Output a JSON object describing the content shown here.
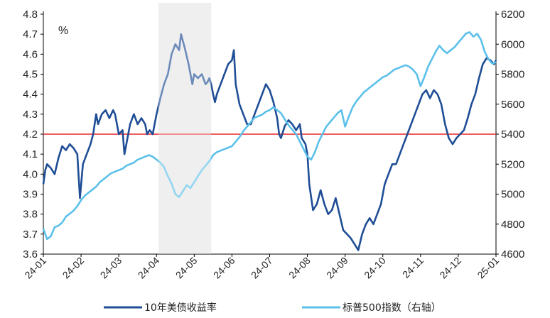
{
  "chart_data": {
    "type": "line",
    "left_unit": "%",
    "x_ticks": [
      "24-01",
      "24-02",
      "24-03",
      "24-04",
      "24-05",
      "24-06",
      "24-07",
      "24-08",
      "24-09",
      "24-10",
      "24-11",
      "24-12",
      "25-01"
    ],
    "y_left": {
      "min": 3.6,
      "max": 4.8,
      "ticks": [
        "3.6",
        "3.7",
        "3.8",
        "3.9",
        "4.0",
        "4.1",
        "4.2",
        "4.3",
        "4.4",
        "4.5",
        "4.6",
        "4.7",
        "4.8"
      ]
    },
    "y_right": {
      "min": 4600,
      "max": 6200,
      "ticks": [
        "4600",
        "4800",
        "5000",
        "5200",
        "5400",
        "5600",
        "5800",
        "6000",
        "6200"
      ]
    },
    "reference_line": {
      "axis": "left",
      "value": 4.2,
      "color": "#e8262a"
    },
    "shaded_region": {
      "x_start": 3.05,
      "x_end": 4.45,
      "color": "#e6e6e6"
    },
    "series": [
      {
        "name": "10年美债收益率",
        "axis": "left",
        "color": "#1f4e96",
        "points": [
          [
            0.0,
            3.95
          ],
          [
            0.05,
            4.02
          ],
          [
            0.1,
            4.05
          ],
          [
            0.2,
            4.03
          ],
          [
            0.3,
            4.0
          ],
          [
            0.4,
            4.08
          ],
          [
            0.5,
            4.14
          ],
          [
            0.6,
            4.12
          ],
          [
            0.7,
            4.15
          ],
          [
            0.8,
            4.13
          ],
          [
            0.9,
            4.1
          ],
          [
            0.97,
            3.88
          ],
          [
            1.05,
            4.05
          ],
          [
            1.15,
            4.1
          ],
          [
            1.25,
            4.15
          ],
          [
            1.32,
            4.2
          ],
          [
            1.4,
            4.3
          ],
          [
            1.45,
            4.25
          ],
          [
            1.55,
            4.3
          ],
          [
            1.65,
            4.32
          ],
          [
            1.75,
            4.28
          ],
          [
            1.85,
            4.32
          ],
          [
            1.9,
            4.3
          ],
          [
            2.0,
            4.2
          ],
          [
            2.1,
            4.22
          ],
          [
            2.15,
            4.1
          ],
          [
            2.2,
            4.15
          ],
          [
            2.3,
            4.25
          ],
          [
            2.4,
            4.3
          ],
          [
            2.5,
            4.25
          ],
          [
            2.6,
            4.28
          ],
          [
            2.7,
            4.25
          ],
          [
            2.75,
            4.2
          ],
          [
            2.82,
            4.22
          ],
          [
            2.9,
            4.2
          ],
          [
            2.95,
            4.25
          ],
          [
            3.0,
            4.3
          ],
          [
            3.1,
            4.38
          ],
          [
            3.2,
            4.45
          ],
          [
            3.3,
            4.5
          ],
          [
            3.4,
            4.6
          ],
          [
            3.5,
            4.65
          ],
          [
            3.6,
            4.62
          ],
          [
            3.65,
            4.7
          ],
          [
            3.75,
            4.63
          ],
          [
            3.85,
            4.55
          ],
          [
            3.95,
            4.45
          ],
          [
            4.0,
            4.5
          ],
          [
            4.1,
            4.48
          ],
          [
            4.2,
            4.5
          ],
          [
            4.3,
            4.45
          ],
          [
            4.35,
            4.46
          ],
          [
            4.4,
            4.48
          ],
          [
            4.45,
            4.45
          ],
          [
            4.5,
            4.4
          ],
          [
            4.55,
            4.36
          ],
          [
            4.6,
            4.4
          ],
          [
            4.7,
            4.45
          ],
          [
            4.8,
            4.5
          ],
          [
            4.9,
            4.55
          ],
          [
            5.0,
            4.57
          ],
          [
            5.05,
            4.62
          ],
          [
            5.1,
            4.45
          ],
          [
            5.2,
            4.35
          ],
          [
            5.3,
            4.3
          ],
          [
            5.4,
            4.25
          ],
          [
            5.5,
            4.25
          ],
          [
            5.6,
            4.3
          ],
          [
            5.7,
            4.35
          ],
          [
            5.8,
            4.4
          ],
          [
            5.9,
            4.45
          ],
          [
            6.0,
            4.42
          ],
          [
            6.1,
            4.36
          ],
          [
            6.2,
            4.28
          ],
          [
            6.25,
            4.2
          ],
          [
            6.3,
            4.18
          ],
          [
            6.4,
            4.24
          ],
          [
            6.5,
            4.27
          ],
          [
            6.6,
            4.25
          ],
          [
            6.7,
            4.22
          ],
          [
            6.8,
            4.25
          ],
          [
            6.85,
            4.18
          ],
          [
            6.95,
            4.15
          ],
          [
            7.0,
            4.1
          ],
          [
            7.05,
            3.95
          ],
          [
            7.15,
            3.82
          ],
          [
            7.25,
            3.85
          ],
          [
            7.35,
            3.92
          ],
          [
            7.45,
            3.85
          ],
          [
            7.55,
            3.8
          ],
          [
            7.65,
            3.82
          ],
          [
            7.75,
            3.88
          ],
          [
            7.85,
            3.8
          ],
          [
            7.95,
            3.72
          ],
          [
            8.05,
            3.7
          ],
          [
            8.15,
            3.68
          ],
          [
            8.25,
            3.65
          ],
          [
            8.35,
            3.62
          ],
          [
            8.45,
            3.7
          ],
          [
            8.55,
            3.75
          ],
          [
            8.65,
            3.78
          ],
          [
            8.75,
            3.75
          ],
          [
            8.85,
            3.8
          ],
          [
            8.95,
            3.85
          ],
          [
            9.05,
            3.95
          ],
          [
            9.15,
            4.0
          ],
          [
            9.25,
            4.05
          ],
          [
            9.35,
            4.05
          ],
          [
            9.45,
            4.1
          ],
          [
            9.55,
            4.15
          ],
          [
            9.65,
            4.2
          ],
          [
            9.75,
            4.25
          ],
          [
            9.85,
            4.3
          ],
          [
            9.95,
            4.35
          ],
          [
            10.05,
            4.4
          ],
          [
            10.15,
            4.42
          ],
          [
            10.25,
            4.38
          ],
          [
            10.35,
            4.42
          ],
          [
            10.45,
            4.4
          ],
          [
            10.55,
            4.35
          ],
          [
            10.65,
            4.25
          ],
          [
            10.75,
            4.18
          ],
          [
            10.85,
            4.15
          ],
          [
            10.95,
            4.18
          ],
          [
            11.05,
            4.2
          ],
          [
            11.15,
            4.22
          ],
          [
            11.25,
            4.28
          ],
          [
            11.35,
            4.35
          ],
          [
            11.45,
            4.4
          ],
          [
            11.55,
            4.48
          ],
          [
            11.65,
            4.55
          ],
          [
            11.75,
            4.58
          ],
          [
            11.85,
            4.57
          ],
          [
            11.95,
            4.55
          ],
          [
            12.0,
            4.57
          ]
        ]
      },
      {
        "name": "标普500指数（右轴）",
        "axis": "right",
        "color": "#5bc0ea",
        "points": [
          [
            0.0,
            4770
          ],
          [
            0.1,
            4700
          ],
          [
            0.2,
            4720
          ],
          [
            0.3,
            4780
          ],
          [
            0.4,
            4790
          ],
          [
            0.5,
            4810
          ],
          [
            0.6,
            4850
          ],
          [
            0.7,
            4870
          ],
          [
            0.8,
            4890
          ],
          [
            0.9,
            4920
          ],
          [
            1.0,
            4960
          ],
          [
            1.1,
            4990
          ],
          [
            1.2,
            5010
          ],
          [
            1.3,
            5030
          ],
          [
            1.4,
            5050
          ],
          [
            1.5,
            5080
          ],
          [
            1.6,
            5100
          ],
          [
            1.7,
            5120
          ],
          [
            1.8,
            5140
          ],
          [
            1.9,
            5150
          ],
          [
            2.0,
            5160
          ],
          [
            2.1,
            5170
          ],
          [
            2.2,
            5190
          ],
          [
            2.3,
            5200
          ],
          [
            2.4,
            5210
          ],
          [
            2.5,
            5230
          ],
          [
            2.6,
            5240
          ],
          [
            2.7,
            5250
          ],
          [
            2.8,
            5260
          ],
          [
            2.9,
            5250
          ],
          [
            3.0,
            5230
          ],
          [
            3.1,
            5210
          ],
          [
            3.2,
            5180
          ],
          [
            3.3,
            5120
          ],
          [
            3.4,
            5070
          ],
          [
            3.5,
            5000
          ],
          [
            3.6,
            4980
          ],
          [
            3.7,
            5020
          ],
          [
            3.8,
            5060
          ],
          [
            3.9,
            5040
          ],
          [
            4.0,
            5080
          ],
          [
            4.1,
            5120
          ],
          [
            4.2,
            5160
          ],
          [
            4.3,
            5190
          ],
          [
            4.4,
            5220
          ],
          [
            4.5,
            5260
          ],
          [
            4.6,
            5280
          ],
          [
            4.7,
            5290
          ],
          [
            4.8,
            5300
          ],
          [
            4.9,
            5310
          ],
          [
            5.0,
            5320
          ],
          [
            5.1,
            5350
          ],
          [
            5.2,
            5380
          ],
          [
            5.3,
            5420
          ],
          [
            5.4,
            5450
          ],
          [
            5.5,
            5480
          ],
          [
            5.6,
            5510
          ],
          [
            5.7,
            5520
          ],
          [
            5.8,
            5530
          ],
          [
            5.9,
            5550
          ],
          [
            6.0,
            5560
          ],
          [
            6.1,
            5580
          ],
          [
            6.2,
            5560
          ],
          [
            6.3,
            5540
          ],
          [
            6.4,
            5500
          ],
          [
            6.5,
            5460
          ],
          [
            6.6,
            5430
          ],
          [
            6.7,
            5400
          ],
          [
            6.8,
            5350
          ],
          [
            6.9,
            5300
          ],
          [
            7.0,
            5250
          ],
          [
            7.1,
            5230
          ],
          [
            7.2,
            5280
          ],
          [
            7.3,
            5350
          ],
          [
            7.4,
            5400
          ],
          [
            7.5,
            5450
          ],
          [
            7.6,
            5480
          ],
          [
            7.7,
            5510
          ],
          [
            7.8,
            5540
          ],
          [
            7.9,
            5560
          ],
          [
            8.0,
            5450
          ],
          [
            8.1,
            5520
          ],
          [
            8.2,
            5580
          ],
          [
            8.3,
            5620
          ],
          [
            8.4,
            5650
          ],
          [
            8.5,
            5680
          ],
          [
            8.6,
            5700
          ],
          [
            8.7,
            5720
          ],
          [
            8.8,
            5740
          ],
          [
            8.9,
            5760
          ],
          [
            9.0,
            5780
          ],
          [
            9.1,
            5790
          ],
          [
            9.2,
            5810
          ],
          [
            9.3,
            5830
          ],
          [
            9.4,
            5840
          ],
          [
            9.5,
            5850
          ],
          [
            9.6,
            5860
          ],
          [
            9.7,
            5850
          ],
          [
            9.8,
            5830
          ],
          [
            9.9,
            5800
          ],
          [
            10.0,
            5720
          ],
          [
            10.1,
            5780
          ],
          [
            10.2,
            5850
          ],
          [
            10.3,
            5900
          ],
          [
            10.4,
            5950
          ],
          [
            10.5,
            5990
          ],
          [
            10.6,
            5960
          ],
          [
            10.7,
            5940
          ],
          [
            10.8,
            5960
          ],
          [
            10.9,
            5980
          ],
          [
            11.0,
            6010
          ],
          [
            11.1,
            6040
          ],
          [
            11.2,
            6070
          ],
          [
            11.3,
            6080
          ],
          [
            11.4,
            6050
          ],
          [
            11.5,
            6070
          ],
          [
            11.6,
            6030
          ],
          [
            11.7,
            5950
          ],
          [
            11.8,
            5900
          ],
          [
            11.9,
            5870
          ],
          [
            12.0,
            5880
          ]
        ]
      }
    ]
  }
}
